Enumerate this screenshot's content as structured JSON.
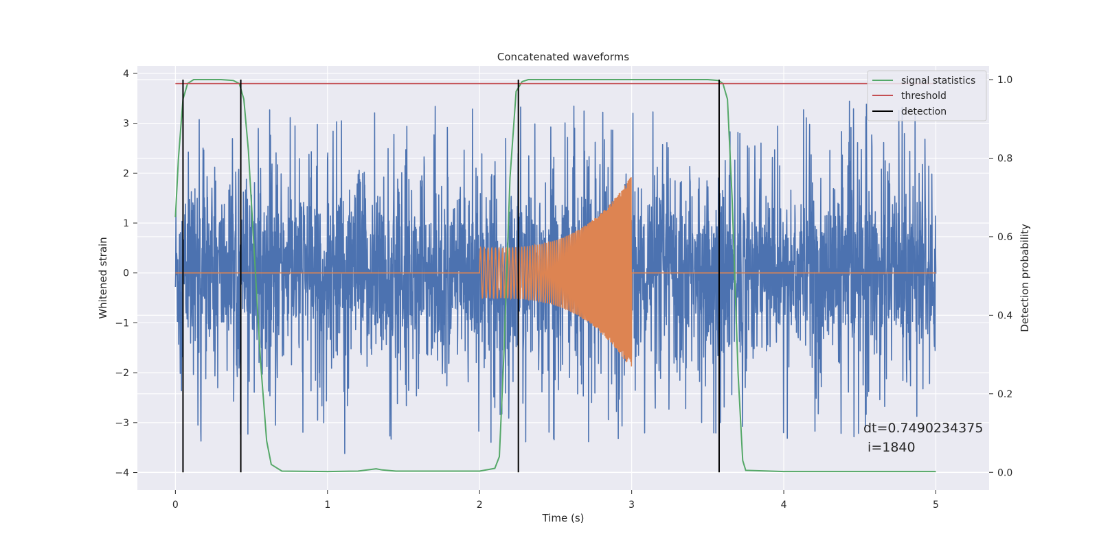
{
  "chart_data": {
    "type": "line",
    "title": "Concatenated waveforms",
    "xlabel": "Time (s)",
    "ylabel": "Whitened strain",
    "y2label": "Detection probability",
    "xlim": [
      -0.25,
      5.35
    ],
    "ylim": [
      -4.35,
      4.15
    ],
    "y2lim": [
      -0.045,
      1.035
    ],
    "xticks": [
      0,
      1,
      2,
      3,
      4,
      5
    ],
    "yticks": [
      -4,
      -3,
      -2,
      -1,
      0,
      1,
      2,
      3,
      4
    ],
    "y2ticks": [
      0.0,
      0.2,
      0.4,
      0.6,
      0.8,
      1.0
    ],
    "grid": true,
    "legend_position": "top-right",
    "background": "#eaeaf2",
    "series": [
      {
        "name": "",
        "axis": "left",
        "color": "#4c72b0",
        "kind": "noise",
        "x_start": 0,
        "x_end": 5,
        "typical_amplitude": [
          -0.9,
          0.9
        ],
        "peak_range": [
          -4.0,
          3.75
        ]
      },
      {
        "name": "",
        "axis": "left",
        "color": "#dd8452",
        "kind": "chirp",
        "x_start": 2.0,
        "x_end": 3.0,
        "envelope_start": 0.5,
        "envelope_end": 1.95,
        "baseline": 0
      },
      {
        "name": "signal statistics",
        "axis": "right",
        "color": "#55a868",
        "x": [
          0.0,
          0.02,
          0.05,
          0.08,
          0.12,
          0.2,
          0.3,
          0.38,
          0.42,
          0.45,
          0.48,
          0.52,
          0.56,
          0.6,
          0.63,
          0.7,
          1.0,
          1.2,
          1.28,
          1.32,
          1.36,
          1.45,
          2.0,
          2.1,
          2.13,
          2.16,
          2.2,
          2.24,
          2.28,
          2.32,
          2.5,
          3.0,
          3.5,
          3.57,
          3.6,
          3.63,
          3.66,
          3.7,
          3.73,
          3.75,
          4.0,
          5.0
        ],
        "y": [
          0.65,
          0.8,
          0.95,
          0.99,
          1.0,
          1.0,
          1.0,
          0.998,
          0.99,
          0.95,
          0.82,
          0.55,
          0.28,
          0.08,
          0.02,
          0.003,
          0.002,
          0.003,
          0.007,
          0.009,
          0.006,
          0.003,
          0.003,
          0.01,
          0.04,
          0.3,
          0.75,
          0.97,
          0.995,
          1.0,
          1.0,
          1.0,
          1.0,
          0.998,
          0.99,
          0.95,
          0.7,
          0.25,
          0.03,
          0.005,
          0.002,
          0.002
        ]
      },
      {
        "name": "threshold",
        "axis": "right",
        "color": "#c44e52",
        "x": [
          0.0,
          5.0
        ],
        "y": [
          0.99,
          0.99
        ]
      },
      {
        "name": "detection",
        "axis": "right",
        "color": "#000000",
        "kind": "vlines",
        "x": [
          0.05,
          0.43,
          2.255,
          3.575
        ],
        "y_range": [
          0.0,
          1.0
        ]
      }
    ],
    "annotation": {
      "line1": "dt=0.7490234375",
      "line2": " i=1840"
    }
  }
}
